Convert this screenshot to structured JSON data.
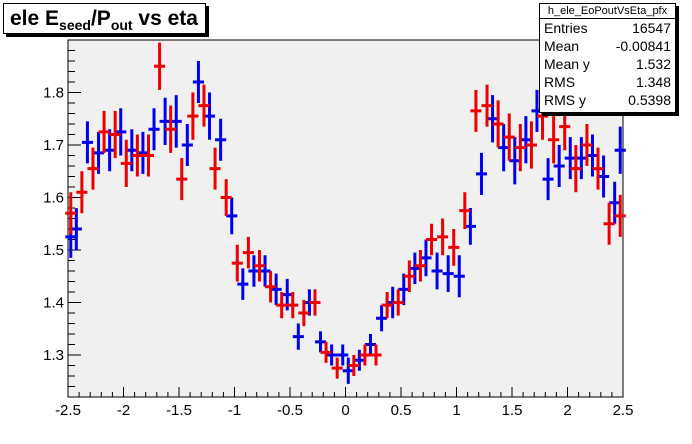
{
  "title": {
    "main": "ele E",
    "sub1": "seed",
    "mid": "/P",
    "sub2": "out",
    "tail": " vs eta"
  },
  "stats": {
    "name": "h_ele_EoPoutVsEta_pfx",
    "rows": [
      {
        "label": "Entries",
        "value": "16547"
      },
      {
        "label": "Mean",
        "value": "-0.00841"
      },
      {
        "label": "Mean y",
        "value": "1.532"
      },
      {
        "label": "RMS",
        "value": "1.348"
      },
      {
        "label": "RMS y",
        "value": "0.5398"
      }
    ]
  },
  "colors": {
    "series1": "#0000ee",
    "series2": "#ee0000",
    "frame_bg": "#f0f0f0"
  },
  "chart_data": {
    "type": "scatter",
    "title": "ele E_seed/P_out vs eta",
    "xlabel": "",
    "ylabel": "",
    "xlim": [
      -2.5,
      2.5
    ],
    "ylim": [
      1.22,
      1.9
    ],
    "xticks": [
      "-2.5",
      "-2",
      "-1.5",
      "-1",
      "-0.5",
      "0",
      "0.5",
      "1",
      "1.5",
      "2",
      "2.5"
    ],
    "yticks": [
      "1.3",
      "1.4",
      "1.5",
      "1.6",
      "1.7",
      "1.8"
    ],
    "grid": false,
    "legend": "none",
    "series": [
      {
        "color": "blue",
        "points": [
          {
            "x": -2.475,
            "y": 1.525,
            "err": 0.04
          },
          {
            "x": -2.425,
            "y": 1.54,
            "err": 0.04
          },
          {
            "x": -2.325,
            "y": 1.705,
            "err": 0.04
          },
          {
            "x": -2.225,
            "y": 1.685,
            "err": 0.04
          },
          {
            "x": -2.125,
            "y": 1.69,
            "err": 0.04
          },
          {
            "x": -2.025,
            "y": 1.725,
            "err": 0.045
          },
          {
            "x": -1.925,
            "y": 1.69,
            "err": 0.04
          },
          {
            "x": -1.825,
            "y": 1.685,
            "err": 0.04
          },
          {
            "x": -1.725,
            "y": 1.73,
            "err": 0.04
          },
          {
            "x": -1.625,
            "y": 1.745,
            "err": 0.045
          },
          {
            "x": -1.525,
            "y": 1.745,
            "err": 0.05
          },
          {
            "x": -1.425,
            "y": 1.7,
            "err": 0.04
          },
          {
            "x": -1.325,
            "y": 1.82,
            "err": 0.04
          },
          {
            "x": -1.225,
            "y": 1.755,
            "err": 0.045
          },
          {
            "x": -1.125,
            "y": 1.71,
            "err": 0.04
          },
          {
            "x": -1.025,
            "y": 1.565,
            "err": 0.035
          },
          {
            "x": -0.925,
            "y": 1.435,
            "err": 0.03
          },
          {
            "x": -0.825,
            "y": 1.46,
            "err": 0.03
          },
          {
            "x": -0.725,
            "y": 1.46,
            "err": 0.03
          },
          {
            "x": -0.625,
            "y": 1.425,
            "err": 0.03
          },
          {
            "x": -0.525,
            "y": 1.415,
            "err": 0.03
          },
          {
            "x": -0.425,
            "y": 1.335,
            "err": 0.025
          },
          {
            "x": -0.325,
            "y": 1.4,
            "err": 0.025
          },
          {
            "x": -0.225,
            "y": 1.325,
            "err": 0.02
          },
          {
            "x": -0.125,
            "y": 1.3,
            "err": 0.02
          },
          {
            "x": -0.025,
            "y": 1.3,
            "err": 0.02
          },
          {
            "x": 0.025,
            "y": 1.27,
            "err": 0.025
          },
          {
            "x": 0.125,
            "y": 1.29,
            "err": 0.02
          },
          {
            "x": 0.225,
            "y": 1.32,
            "err": 0.02
          },
          {
            "x": 0.325,
            "y": 1.37,
            "err": 0.025
          },
          {
            "x": 0.425,
            "y": 1.4,
            "err": 0.03
          },
          {
            "x": 0.525,
            "y": 1.425,
            "err": 0.03
          },
          {
            "x": 0.625,
            "y": 1.465,
            "err": 0.03
          },
          {
            "x": 0.725,
            "y": 1.485,
            "err": 0.035
          },
          {
            "x": 0.825,
            "y": 1.46,
            "err": 0.035
          },
          {
            "x": 0.925,
            "y": 1.455,
            "err": 0.035
          },
          {
            "x": 1.025,
            "y": 1.45,
            "err": 0.04
          },
          {
            "x": 1.125,
            "y": 1.545,
            "err": 0.035
          },
          {
            "x": 1.225,
            "y": 1.645,
            "err": 0.04
          },
          {
            "x": 1.325,
            "y": 1.75,
            "err": 0.045
          },
          {
            "x": 1.425,
            "y": 1.695,
            "err": 0.045
          },
          {
            "x": 1.525,
            "y": 1.67,
            "err": 0.045
          },
          {
            "x": 1.625,
            "y": 1.71,
            "err": 0.045
          },
          {
            "x": 1.725,
            "y": 1.765,
            "err": 0.04
          },
          {
            "x": 1.825,
            "y": 1.635,
            "err": 0.04
          },
          {
            "x": 1.925,
            "y": 1.66,
            "err": 0.04
          },
          {
            "x": 2.025,
            "y": 1.675,
            "err": 0.04
          },
          {
            "x": 2.125,
            "y": 1.675,
            "err": 0.04
          },
          {
            "x": 2.225,
            "y": 1.68,
            "err": 0.04
          },
          {
            "x": 2.325,
            "y": 1.64,
            "err": 0.04
          },
          {
            "x": 2.425,
            "y": 1.59,
            "err": 0.04
          },
          {
            "x": 2.475,
            "y": 1.69,
            "err": 0.045
          }
        ]
      },
      {
        "color": "red",
        "points": [
          {
            "x": -2.475,
            "y": 1.57,
            "err": 0.04
          },
          {
            "x": -2.375,
            "y": 1.61,
            "err": 0.04
          },
          {
            "x": -2.275,
            "y": 1.655,
            "err": 0.04
          },
          {
            "x": -2.175,
            "y": 1.725,
            "err": 0.04
          },
          {
            "x": -2.075,
            "y": 1.72,
            "err": 0.045
          },
          {
            "x": -1.975,
            "y": 1.665,
            "err": 0.045
          },
          {
            "x": -1.875,
            "y": 1.68,
            "err": 0.04
          },
          {
            "x": -1.775,
            "y": 1.68,
            "err": 0.04
          },
          {
            "x": -1.675,
            "y": 1.85,
            "err": 0.045
          },
          {
            "x": -1.575,
            "y": 1.73,
            "err": 0.045
          },
          {
            "x": -1.475,
            "y": 1.635,
            "err": 0.04
          },
          {
            "x": -1.375,
            "y": 1.755,
            "err": 0.045
          },
          {
            "x": -1.275,
            "y": 1.775,
            "err": 0.04
          },
          {
            "x": -1.175,
            "y": 1.655,
            "err": 0.04
          },
          {
            "x": -1.075,
            "y": 1.6,
            "err": 0.035
          },
          {
            "x": -0.975,
            "y": 1.475,
            "err": 0.035
          },
          {
            "x": -0.875,
            "y": 1.495,
            "err": 0.03
          },
          {
            "x": -0.775,
            "y": 1.47,
            "err": 0.03
          },
          {
            "x": -0.675,
            "y": 1.43,
            "err": 0.03
          },
          {
            "x": -0.575,
            "y": 1.395,
            "err": 0.025
          },
          {
            "x": -0.475,
            "y": 1.395,
            "err": 0.025
          },
          {
            "x": -0.375,
            "y": 1.38,
            "err": 0.025
          },
          {
            "x": -0.275,
            "y": 1.4,
            "err": 0.025
          },
          {
            "x": -0.175,
            "y": 1.305,
            "err": 0.02
          },
          {
            "x": -0.075,
            "y": 1.275,
            "err": 0.02
          },
          {
            "x": 0.075,
            "y": 1.28,
            "err": 0.02
          },
          {
            "x": 0.175,
            "y": 1.3,
            "err": 0.02
          },
          {
            "x": 0.275,
            "y": 1.3,
            "err": 0.02
          },
          {
            "x": 0.375,
            "y": 1.395,
            "err": 0.025
          },
          {
            "x": 0.475,
            "y": 1.4,
            "err": 0.025
          },
          {
            "x": 0.575,
            "y": 1.45,
            "err": 0.03
          },
          {
            "x": 0.675,
            "y": 1.47,
            "err": 0.03
          },
          {
            "x": 0.775,
            "y": 1.52,
            "err": 0.03
          },
          {
            "x": 0.875,
            "y": 1.525,
            "err": 0.035
          },
          {
            "x": 0.975,
            "y": 1.505,
            "err": 0.035
          },
          {
            "x": 1.075,
            "y": 1.575,
            "err": 0.035
          },
          {
            "x": 1.175,
            "y": 1.765,
            "err": 0.04
          },
          {
            "x": 1.275,
            "y": 1.775,
            "err": 0.04
          },
          {
            "x": 1.375,
            "y": 1.74,
            "err": 0.045
          },
          {
            "x": 1.475,
            "y": 1.715,
            "err": 0.045
          },
          {
            "x": 1.575,
            "y": 1.695,
            "err": 0.045
          },
          {
            "x": 1.675,
            "y": 1.7,
            "err": 0.045
          },
          {
            "x": 1.775,
            "y": 1.755,
            "err": 0.045
          },
          {
            "x": 1.875,
            "y": 1.71,
            "err": 0.045
          },
          {
            "x": 1.975,
            "y": 1.735,
            "err": 0.045
          },
          {
            "x": 2.075,
            "y": 1.655,
            "err": 0.045
          },
          {
            "x": 2.175,
            "y": 1.7,
            "err": 0.04
          },
          {
            "x": 2.275,
            "y": 1.655,
            "err": 0.04
          },
          {
            "x": 2.375,
            "y": 1.55,
            "err": 0.04
          },
          {
            "x": 2.475,
            "y": 1.565,
            "err": 0.04
          }
        ]
      }
    ]
  }
}
